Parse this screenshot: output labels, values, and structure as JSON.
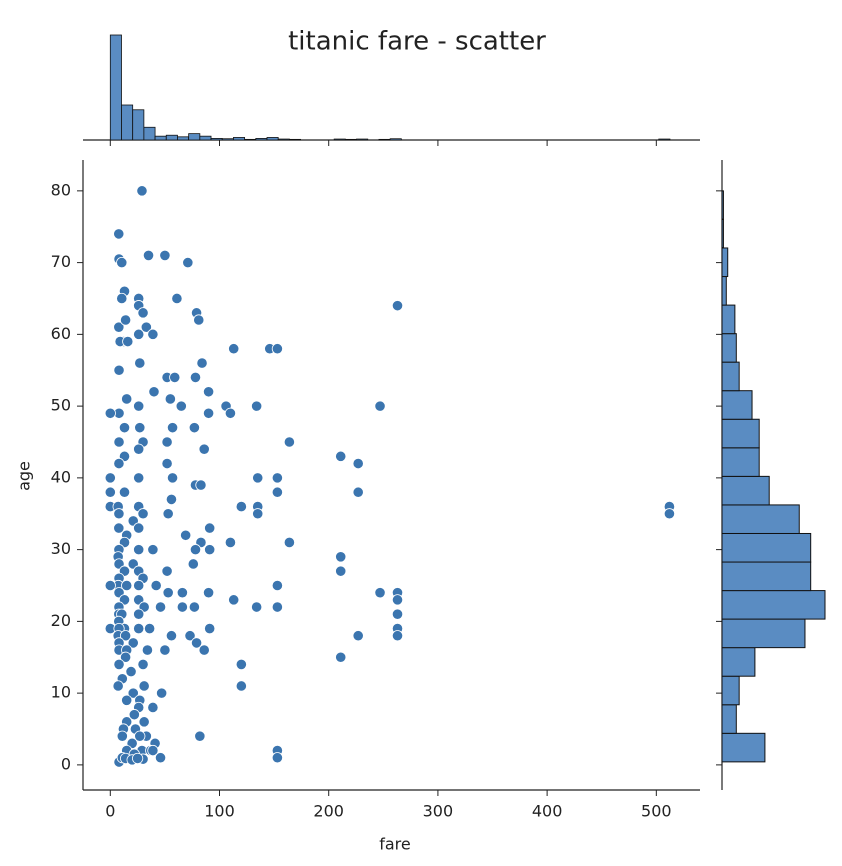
{
  "chart_data": [
    {
      "type": "scatter",
      "title": "titanic fare - scatter",
      "x_label": "fare",
      "y_label": "age",
      "color": "#3b75af",
      "xlim": [
        -25,
        540
      ],
      "ylim": [
        -3.5,
        84.3
      ],
      "xticks": [
        0,
        100,
        200,
        300,
        400,
        500
      ],
      "yticks": [
        0,
        10,
        20,
        30,
        40,
        50,
        60,
        70,
        80
      ],
      "x": [
        29,
        7.75,
        8,
        10.5,
        35,
        50,
        71,
        61,
        263,
        79,
        81,
        26,
        26,
        13,
        10.5,
        7.8,
        30,
        33,
        14,
        12,
        113,
        146,
        153,
        9,
        26,
        39,
        16,
        84,
        8,
        27,
        52,
        59,
        78,
        247,
        134,
        164,
        211,
        227,
        135,
        153,
        153,
        227,
        120,
        135,
        135,
        512,
        512,
        164,
        211,
        211,
        153,
        247,
        263,
        263,
        263,
        263,
        263,
        227,
        211,
        153,
        134,
        113,
        120,
        120,
        82,
        153,
        153,
        8,
        90,
        106,
        110,
        90,
        77,
        86,
        57,
        65,
        55,
        40,
        26,
        15,
        8,
        0,
        13,
        27,
        30,
        52,
        78,
        83,
        91,
        91,
        26,
        8,
        13,
        7.9,
        52,
        57,
        26,
        13,
        0,
        0,
        0,
        7.2,
        7.9,
        26,
        21,
        30,
        53,
        56,
        7.8,
        15,
        26,
        13,
        7.9,
        26,
        39,
        69,
        83,
        110,
        78,
        7.2,
        8,
        13,
        21,
        26,
        30,
        52,
        76,
        8,
        7.25,
        0,
        15,
        26,
        42,
        53,
        66,
        77,
        90,
        8,
        13,
        26,
        7.9,
        31,
        46,
        66,
        7.8,
        10.5,
        26,
        7.75,
        13,
        0,
        8,
        26,
        36,
        73,
        91,
        7.2,
        14,
        56,
        79,
        8,
        21,
        8,
        15,
        34,
        50,
        86,
        14,
        8,
        30,
        19,
        11,
        7.2,
        31,
        21,
        27,
        47,
        15,
        26,
        39,
        22,
        31,
        15,
        12,
        23,
        33,
        11,
        27,
        20,
        41,
        15,
        29,
        37,
        22,
        46,
        11,
        14,
        30,
        20,
        39,
        25
      ],
      "values": [
        80,
        74,
        70.5,
        70,
        71,
        71,
        70,
        65,
        64,
        63,
        62,
        65,
        64,
        66,
        65,
        61,
        63,
        61,
        62,
        59,
        58,
        58,
        58,
        59,
        60,
        60,
        59,
        56,
        55,
        56,
        54,
        54,
        54,
        50,
        50,
        45,
        43,
        42,
        40,
        40,
        38,
        38,
        36,
        36,
        35,
        36,
        35,
        31,
        29,
        27,
        25,
        24,
        24,
        23,
        21,
        19,
        18,
        18,
        15,
        22,
        22,
        23,
        14,
        11,
        4,
        2,
        1,
        0.4,
        52,
        50,
        49,
        49,
        47,
        44,
        47,
        50,
        51,
        52,
        50,
        51,
        49,
        49,
        47,
        47,
        45,
        45,
        39,
        39,
        33,
        30,
        44,
        45,
        43,
        42,
        42,
        40,
        40,
        38,
        40,
        38,
        36,
        36,
        35,
        36,
        34,
        35,
        35,
        37,
        33,
        32,
        33,
        31,
        30,
        30,
        30,
        32,
        31,
        31,
        30,
        29,
        28,
        27,
        28,
        27,
        26,
        27,
        28,
        26,
        25,
        25,
        25,
        25,
        25,
        24,
        24,
        22,
        24,
        24,
        23,
        23,
        22,
        22,
        22,
        22,
        21,
        21,
        21,
        20,
        19,
        19,
        19,
        19,
        19,
        18,
        19,
        18,
        18,
        18,
        17,
        17,
        17,
        16,
        16,
        16,
        16,
        16,
        15,
        14,
        14,
        13,
        12,
        11,
        11,
        10,
        9,
        10,
        9,
        8,
        8,
        7,
        6,
        6,
        5,
        5,
        4,
        4,
        4,
        3,
        3,
        2,
        2,
        2,
        1.5,
        1,
        1,
        0.9,
        0.8,
        0.7,
        2,
        0.9
      ]
    },
    {
      "type": "histogram",
      "orientation": "vertical",
      "color": "#5a8cc2",
      "bins": [
        0,
        10.25,
        20.5,
        30.75,
        41,
        51.25,
        61.5,
        71.75,
        82,
        92.25,
        102.5,
        112.75,
        123,
        133.25,
        143.5,
        153.75,
        164,
        174.25,
        184.5,
        194.75,
        205,
        215.25,
        225.5,
        235.75,
        246,
        256.25,
        266.5,
        276.75,
        287,
        297.25,
        307.5,
        317.75,
        328,
        338.25,
        348.5,
        358.75,
        369,
        379.25,
        389.5,
        399.75,
        410,
        420.25,
        430.5,
        440.75,
        451,
        461.25,
        471.5,
        481.75,
        492,
        502.25,
        512.5
      ],
      "counts": [
        330,
        110,
        95,
        40,
        12,
        15,
        10,
        20,
        12,
        5,
        4,
        8,
        2,
        5,
        8,
        3,
        2,
        0,
        0,
        0,
        3,
        2,
        3,
        0,
        2,
        4,
        0,
        0,
        0,
        0,
        0,
        0,
        0,
        0,
        0,
        0,
        0,
        0,
        0,
        0,
        0,
        0,
        0,
        0,
        0,
        0,
        0,
        0,
        0,
        3
      ]
    },
    {
      "type": "histogram",
      "orientation": "horizontal",
      "color": "#5a8cc2",
      "bins": [
        0.42,
        4.4,
        8.38,
        12.36,
        16.34,
        20.32,
        24.29,
        28.27,
        32.25,
        36.23,
        40.21,
        44.19,
        48.17,
        52.15,
        56.13,
        60.1,
        64.08,
        68.06,
        72.04,
        76.02,
        80
      ],
      "counts": [
        30,
        10,
        12,
        23,
        58,
        72,
        62,
        62,
        54,
        33,
        26,
        26,
        21,
        12,
        10,
        9,
        3,
        4,
        1,
        1
      ]
    }
  ]
}
